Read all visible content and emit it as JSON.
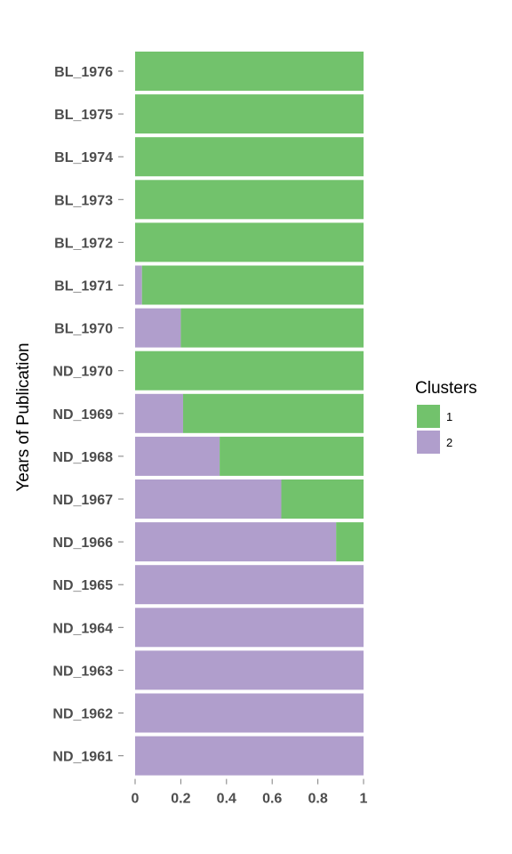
{
  "chart_data": {
    "type": "bar",
    "orientation": "horizontal",
    "stacked": true,
    "ylabel": "Years of Publication",
    "xlabel": "",
    "xlim": [
      0,
      1
    ],
    "xticks": [
      "0",
      "0.2",
      "0.4",
      "0.6",
      "0.8",
      "1"
    ],
    "xtick_values": [
      0,
      0.2,
      0.4,
      0.6,
      0.8,
      1
    ],
    "grid": false,
    "legend": {
      "title": "Clusters",
      "placement": "right",
      "entries": [
        {
          "label": "1",
          "color": "#72c26c"
        },
        {
          "label": "2",
          "color": "#b09ecc"
        }
      ]
    },
    "categories": [
      "BL_1976",
      "BL_1975",
      "BL_1974",
      "BL_1973",
      "BL_1972",
      "BL_1971",
      "BL_1970",
      "ND_1970",
      "ND_1969",
      "ND_1968",
      "ND_1967",
      "ND_1966",
      "ND_1965",
      "ND_1964",
      "ND_1963",
      "ND_1962",
      "ND_1961"
    ],
    "series": [
      {
        "name": "2",
        "color": "#b09ecc",
        "values": [
          0,
          0,
          0,
          0,
          0,
          0.03,
          0.2,
          0,
          0.21,
          0.37,
          0.64,
          0.88,
          1,
          1,
          1,
          1,
          1
        ]
      },
      {
        "name": "1",
        "color": "#72c26c",
        "values": [
          1,
          1,
          1,
          1,
          1,
          0.97,
          0.8,
          1,
          0.79,
          0.63,
          0.36,
          0.12,
          0,
          0,
          0,
          0,
          0
        ]
      }
    ]
  }
}
